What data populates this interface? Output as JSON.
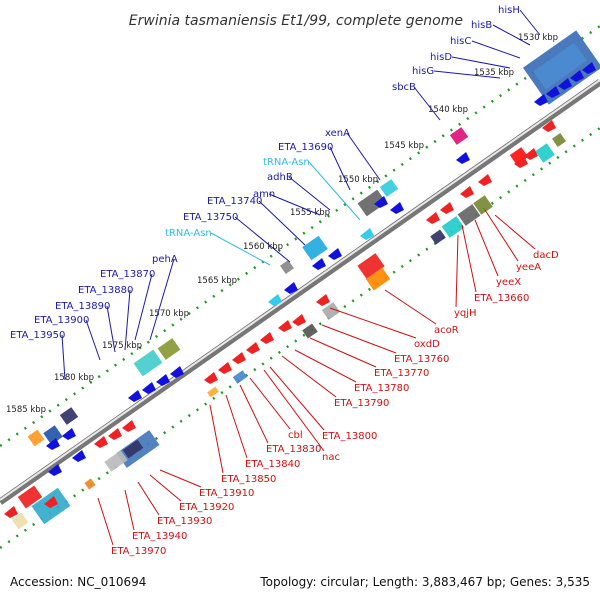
{
  "title": "Erwinia tasmaniensis Et1/99, complete genome",
  "footer": {
    "accession": "Accession: NC_010694",
    "topology": "Topology: circular; Length: 3,883,467 bp; Genes: 3,535"
  },
  "colors": {
    "forward_label": "#1a1aa8",
    "reverse_label": "#cc1111",
    "trna_label": "#33bbdd",
    "backbone": "#777777",
    "tick_dot": "#229922"
  },
  "ticks": [
    {
      "label": "1530 kbp"
    },
    {
      "label": "1535 kbp"
    },
    {
      "label": "1540 kbp"
    },
    {
      "label": "1545 kbp"
    },
    {
      "label": "1550 kbp"
    },
    {
      "label": "1555 kbp"
    },
    {
      "label": "1560 kbp"
    },
    {
      "label": "1565 kbp"
    },
    {
      "label": "1570 kbp"
    },
    {
      "label": "1575 kbp"
    },
    {
      "label": "1580 kbp"
    },
    {
      "label": "1585 kbp"
    }
  ],
  "genes_forward": [
    {
      "label": "hisH",
      "kind": "gene"
    },
    {
      "label": "hisB",
      "kind": "gene"
    },
    {
      "label": "hisC",
      "kind": "gene"
    },
    {
      "label": "hisD",
      "kind": "gene"
    },
    {
      "label": "hisG",
      "kind": "gene"
    },
    {
      "label": "sbcB",
      "kind": "gene"
    },
    {
      "label": "xenA",
      "kind": "gene"
    },
    {
      "label": "ETA_13690",
      "kind": "gene"
    },
    {
      "label": "tRNA-Asn",
      "kind": "trna"
    },
    {
      "label": "adhB",
      "kind": "gene"
    },
    {
      "label": "amn",
      "kind": "gene"
    },
    {
      "label": "ETA_13740",
      "kind": "gene"
    },
    {
      "label": "ETA_13750",
      "kind": "gene"
    },
    {
      "label": "tRNA-Asn",
      "kind": "trna"
    },
    {
      "label": "pehA",
      "kind": "gene"
    },
    {
      "label": "ETA_13870",
      "kind": "gene"
    },
    {
      "label": "ETA_13880",
      "kind": "gene"
    },
    {
      "label": "ETA_13890",
      "kind": "gene"
    },
    {
      "label": "ETA_13900",
      "kind": "gene"
    },
    {
      "label": "ETA_13950",
      "kind": "gene"
    }
  ],
  "genes_reverse": [
    {
      "label": "dacD"
    },
    {
      "label": "yeeA"
    },
    {
      "label": "yeeX"
    },
    {
      "label": "ETA_13660"
    },
    {
      "label": "yqjH"
    },
    {
      "label": "acoR"
    },
    {
      "label": "oxdD"
    },
    {
      "label": "ETA_13760"
    },
    {
      "label": "ETA_13770"
    },
    {
      "label": "ETA_13780"
    },
    {
      "label": "ETA_13790"
    },
    {
      "label": "ETA_13800"
    },
    {
      "label": "nac"
    },
    {
      "label": "cbl"
    },
    {
      "label": "ETA_13830"
    },
    {
      "label": "ETA_13840"
    },
    {
      "label": "ETA_13850"
    },
    {
      "label": "ETA_13910"
    },
    {
      "label": "ETA_13920"
    },
    {
      "label": "ETA_13930"
    },
    {
      "label": "ETA_13940"
    },
    {
      "label": "ETA_13970"
    }
  ]
}
